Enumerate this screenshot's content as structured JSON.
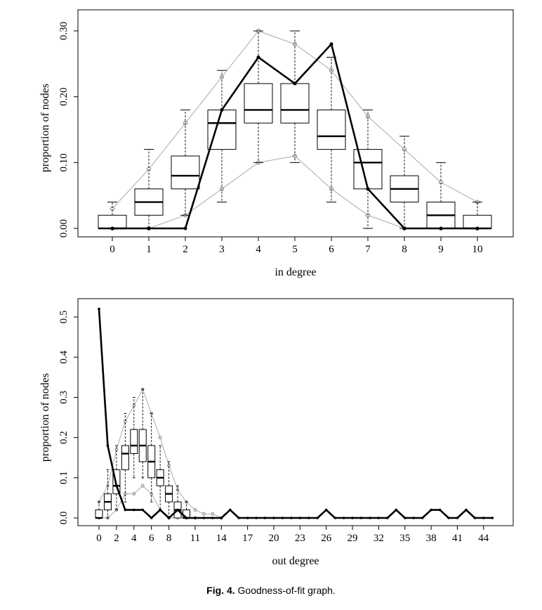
{
  "caption": {
    "label": "Fig. 4.",
    "text": "Goodness-of-fit graph."
  },
  "colors": {
    "observed": "#000000",
    "simulated_bounds": "#aaaaaa",
    "box": "#000000"
  },
  "chart_data": [
    {
      "type": "boxplot",
      "title": "",
      "xlabel": "in degree",
      "ylabel": "proportion of nodes",
      "categories": [
        0,
        1,
        2,
        3,
        4,
        5,
        6,
        7,
        8,
        9,
        10
      ],
      "ylim": [
        0,
        0.3
      ],
      "yticks": [
        "0.00",
        "0.10",
        "0.20",
        "0.30"
      ],
      "boxes": [
        {
          "x": 0,
          "min": 0,
          "q1": 0,
          "median": 0,
          "q3": 0.02,
          "max": 0.04
        },
        {
          "x": 1,
          "min": 0,
          "q1": 0.02,
          "median": 0.04,
          "q3": 0.06,
          "max": 0.12
        },
        {
          "x": 2,
          "min": 0.02,
          "q1": 0.06,
          "median": 0.08,
          "q3": 0.11,
          "max": 0.18
        },
        {
          "x": 3,
          "min": 0.04,
          "q1": 0.12,
          "median": 0.16,
          "q3": 0.18,
          "max": 0.24
        },
        {
          "x": 4,
          "min": 0.1,
          "q1": 0.16,
          "median": 0.18,
          "q3": 0.22,
          "max": 0.3
        },
        {
          "x": 5,
          "min": 0.1,
          "q1": 0.16,
          "median": 0.18,
          "q3": 0.22,
          "max": 0.3
        },
        {
          "x": 6,
          "min": 0.04,
          "q1": 0.12,
          "median": 0.14,
          "q3": 0.18,
          "max": 0.26
        },
        {
          "x": 7,
          "min": 0,
          "q1": 0.06,
          "median": 0.1,
          "q3": 0.12,
          "max": 0.18
        },
        {
          "x": 8,
          "min": 0,
          "q1": 0.04,
          "median": 0.06,
          "q3": 0.08,
          "max": 0.14
        },
        {
          "x": 9,
          "min": 0,
          "q1": 0,
          "median": 0.02,
          "q3": 0.04,
          "max": 0.1
        },
        {
          "x": 10,
          "min": 0,
          "q1": 0,
          "median": 0,
          "q3": 0.02,
          "max": 0.04
        }
      ],
      "upper_band": [
        {
          "x": 0,
          "y": 0.03
        },
        {
          "x": 1,
          "y": 0.09
        },
        {
          "x": 2,
          "y": 0.16
        },
        {
          "x": 3,
          "y": 0.23
        },
        {
          "x": 4,
          "y": 0.3
        },
        {
          "x": 5,
          "y": 0.28
        },
        {
          "x": 6,
          "y": 0.24
        },
        {
          "x": 7,
          "y": 0.17
        },
        {
          "x": 8,
          "y": 0.12
        },
        {
          "x": 9,
          "y": 0.07
        },
        {
          "x": 10,
          "y": 0.04
        }
      ],
      "lower_band": [
        {
          "x": 0,
          "y": 0
        },
        {
          "x": 1,
          "y": 0
        },
        {
          "x": 2,
          "y": 0.02
        },
        {
          "x": 3,
          "y": 0.06
        },
        {
          "x": 4,
          "y": 0.1
        },
        {
          "x": 5,
          "y": 0.11
        },
        {
          "x": 6,
          "y": 0.06
        },
        {
          "x": 7,
          "y": 0.02
        },
        {
          "x": 8,
          "y": 0
        },
        {
          "x": 9,
          "y": 0
        },
        {
          "x": 10,
          "y": 0
        }
      ],
      "observed": [
        {
          "x": 0,
          "y": 0
        },
        {
          "x": 1,
          "y": 0
        },
        {
          "x": 2,
          "y": 0
        },
        {
          "x": 3,
          "y": 0.18
        },
        {
          "x": 4,
          "y": 0.26
        },
        {
          "x": 5,
          "y": 0.22
        },
        {
          "x": 6,
          "y": 0.28
        },
        {
          "x": 7,
          "y": 0.06
        },
        {
          "x": 8,
          "y": 0
        },
        {
          "x": 9,
          "y": 0
        },
        {
          "x": 10,
          "y": 0
        }
      ]
    },
    {
      "type": "boxplot",
      "title": "",
      "xlabel": "out degree",
      "ylabel": "proportion of nodes",
      "xlim": [
        0,
        45
      ],
      "xticks": [
        0,
        2,
        4,
        6,
        8,
        11,
        14,
        17,
        20,
        23,
        26,
        29,
        32,
        35,
        38,
        41,
        44
      ],
      "ylim": [
        0,
        0.5
      ],
      "yticks": [
        "0.0",
        "0.1",
        "0.2",
        "0.3",
        "0.4",
        "0.5"
      ],
      "boxes": [
        {
          "x": 0,
          "min": 0,
          "q1": 0,
          "median": 0,
          "q3": 0.02,
          "max": 0.04
        },
        {
          "x": 1,
          "min": 0,
          "q1": 0.02,
          "median": 0.04,
          "q3": 0.06,
          "max": 0.12
        },
        {
          "x": 2,
          "min": 0.02,
          "q1": 0.06,
          "median": 0.08,
          "q3": 0.12,
          "max": 0.18
        },
        {
          "x": 3,
          "min": 0.04,
          "q1": 0.12,
          "median": 0.16,
          "q3": 0.18,
          "max": 0.26
        },
        {
          "x": 4,
          "min": 0.1,
          "q1": 0.16,
          "median": 0.18,
          "q3": 0.22,
          "max": 0.3
        },
        {
          "x": 5,
          "min": 0.1,
          "q1": 0.14,
          "median": 0.18,
          "q3": 0.22,
          "max": 0.32
        },
        {
          "x": 6,
          "min": 0.04,
          "q1": 0.1,
          "median": 0.14,
          "q3": 0.18,
          "max": 0.26
        },
        {
          "x": 7,
          "min": 0.02,
          "q1": 0.08,
          "median": 0.1,
          "q3": 0.12,
          "max": 0.18
        },
        {
          "x": 8,
          "min": 0,
          "q1": 0.04,
          "median": 0.06,
          "q3": 0.08,
          "max": 0.14
        },
        {
          "x": 9,
          "min": 0,
          "q1": 0,
          "median": 0.02,
          "q3": 0.04,
          "max": 0.08
        },
        {
          "x": 10,
          "min": 0,
          "q1": 0,
          "median": 0,
          "q3": 0.02,
          "max": 0.04
        }
      ],
      "upper_band": [
        {
          "x": 0,
          "y": 0.04
        },
        {
          "x": 1,
          "y": 0.08
        },
        {
          "x": 2,
          "y": 0.17
        },
        {
          "x": 3,
          "y": 0.24
        },
        {
          "x": 4,
          "y": 0.28
        },
        {
          "x": 5,
          "y": 0.32
        },
        {
          "x": 6,
          "y": 0.26
        },
        {
          "x": 7,
          "y": 0.2
        },
        {
          "x": 8,
          "y": 0.13
        },
        {
          "x": 9,
          "y": 0.07
        },
        {
          "x": 10,
          "y": 0.04
        },
        {
          "x": 11,
          "y": 0.02
        },
        {
          "x": 12,
          "y": 0.01
        },
        {
          "x": 13,
          "y": 0.01
        },
        {
          "x": 14,
          "y": 0
        }
      ],
      "lower_band": [
        {
          "x": 0,
          "y": 0
        },
        {
          "x": 1,
          "y": 0
        },
        {
          "x": 2,
          "y": 0.02
        },
        {
          "x": 3,
          "y": 0.06
        },
        {
          "x": 4,
          "y": 0.06
        },
        {
          "x": 5,
          "y": 0.08
        },
        {
          "x": 6,
          "y": 0.06
        },
        {
          "x": 7,
          "y": 0.02
        },
        {
          "x": 8,
          "y": 0
        },
        {
          "x": 9,
          "y": 0
        },
        {
          "x": 10,
          "y": 0
        },
        {
          "x": 11,
          "y": 0
        }
      ],
      "observed": [
        {
          "x": 0,
          "y": 0.52
        },
        {
          "x": 1,
          "y": 0.18
        },
        {
          "x": 2,
          "y": 0.08
        },
        {
          "x": 3,
          "y": 0.02
        },
        {
          "x": 4,
          "y": 0.02
        },
        {
          "x": 5,
          "y": 0.02
        },
        {
          "x": 6,
          "y": 0
        },
        {
          "x": 7,
          "y": 0.02
        },
        {
          "x": 8,
          "y": 0
        },
        {
          "x": 9,
          "y": 0.02
        },
        {
          "x": 10,
          "y": 0
        },
        {
          "x": 11,
          "y": 0
        },
        {
          "x": 12,
          "y": 0
        },
        {
          "x": 13,
          "y": 0
        },
        {
          "x": 14,
          "y": 0
        },
        {
          "x": 15,
          "y": 0.02
        },
        {
          "x": 16,
          "y": 0
        },
        {
          "x": 17,
          "y": 0
        },
        {
          "x": 18,
          "y": 0
        },
        {
          "x": 19,
          "y": 0
        },
        {
          "x": 20,
          "y": 0
        },
        {
          "x": 21,
          "y": 0
        },
        {
          "x": 22,
          "y": 0
        },
        {
          "x": 23,
          "y": 0
        },
        {
          "x": 24,
          "y": 0
        },
        {
          "x": 25,
          "y": 0
        },
        {
          "x": 26,
          "y": 0.02
        },
        {
          "x": 27,
          "y": 0
        },
        {
          "x": 28,
          "y": 0
        },
        {
          "x": 29,
          "y": 0
        },
        {
          "x": 30,
          "y": 0
        },
        {
          "x": 31,
          "y": 0
        },
        {
          "x": 32,
          "y": 0
        },
        {
          "x": 33,
          "y": 0
        },
        {
          "x": 34,
          "y": 0.02
        },
        {
          "x": 35,
          "y": 0
        },
        {
          "x": 36,
          "y": 0
        },
        {
          "x": 37,
          "y": 0
        },
        {
          "x": 38,
          "y": 0.02
        },
        {
          "x": 39,
          "y": 0.02
        },
        {
          "x": 40,
          "y": 0
        },
        {
          "x": 41,
          "y": 0
        },
        {
          "x": 42,
          "y": 0.02
        },
        {
          "x": 43,
          "y": 0
        },
        {
          "x": 44,
          "y": 0
        },
        {
          "x": 45,
          "y": 0
        }
      ]
    }
  ]
}
